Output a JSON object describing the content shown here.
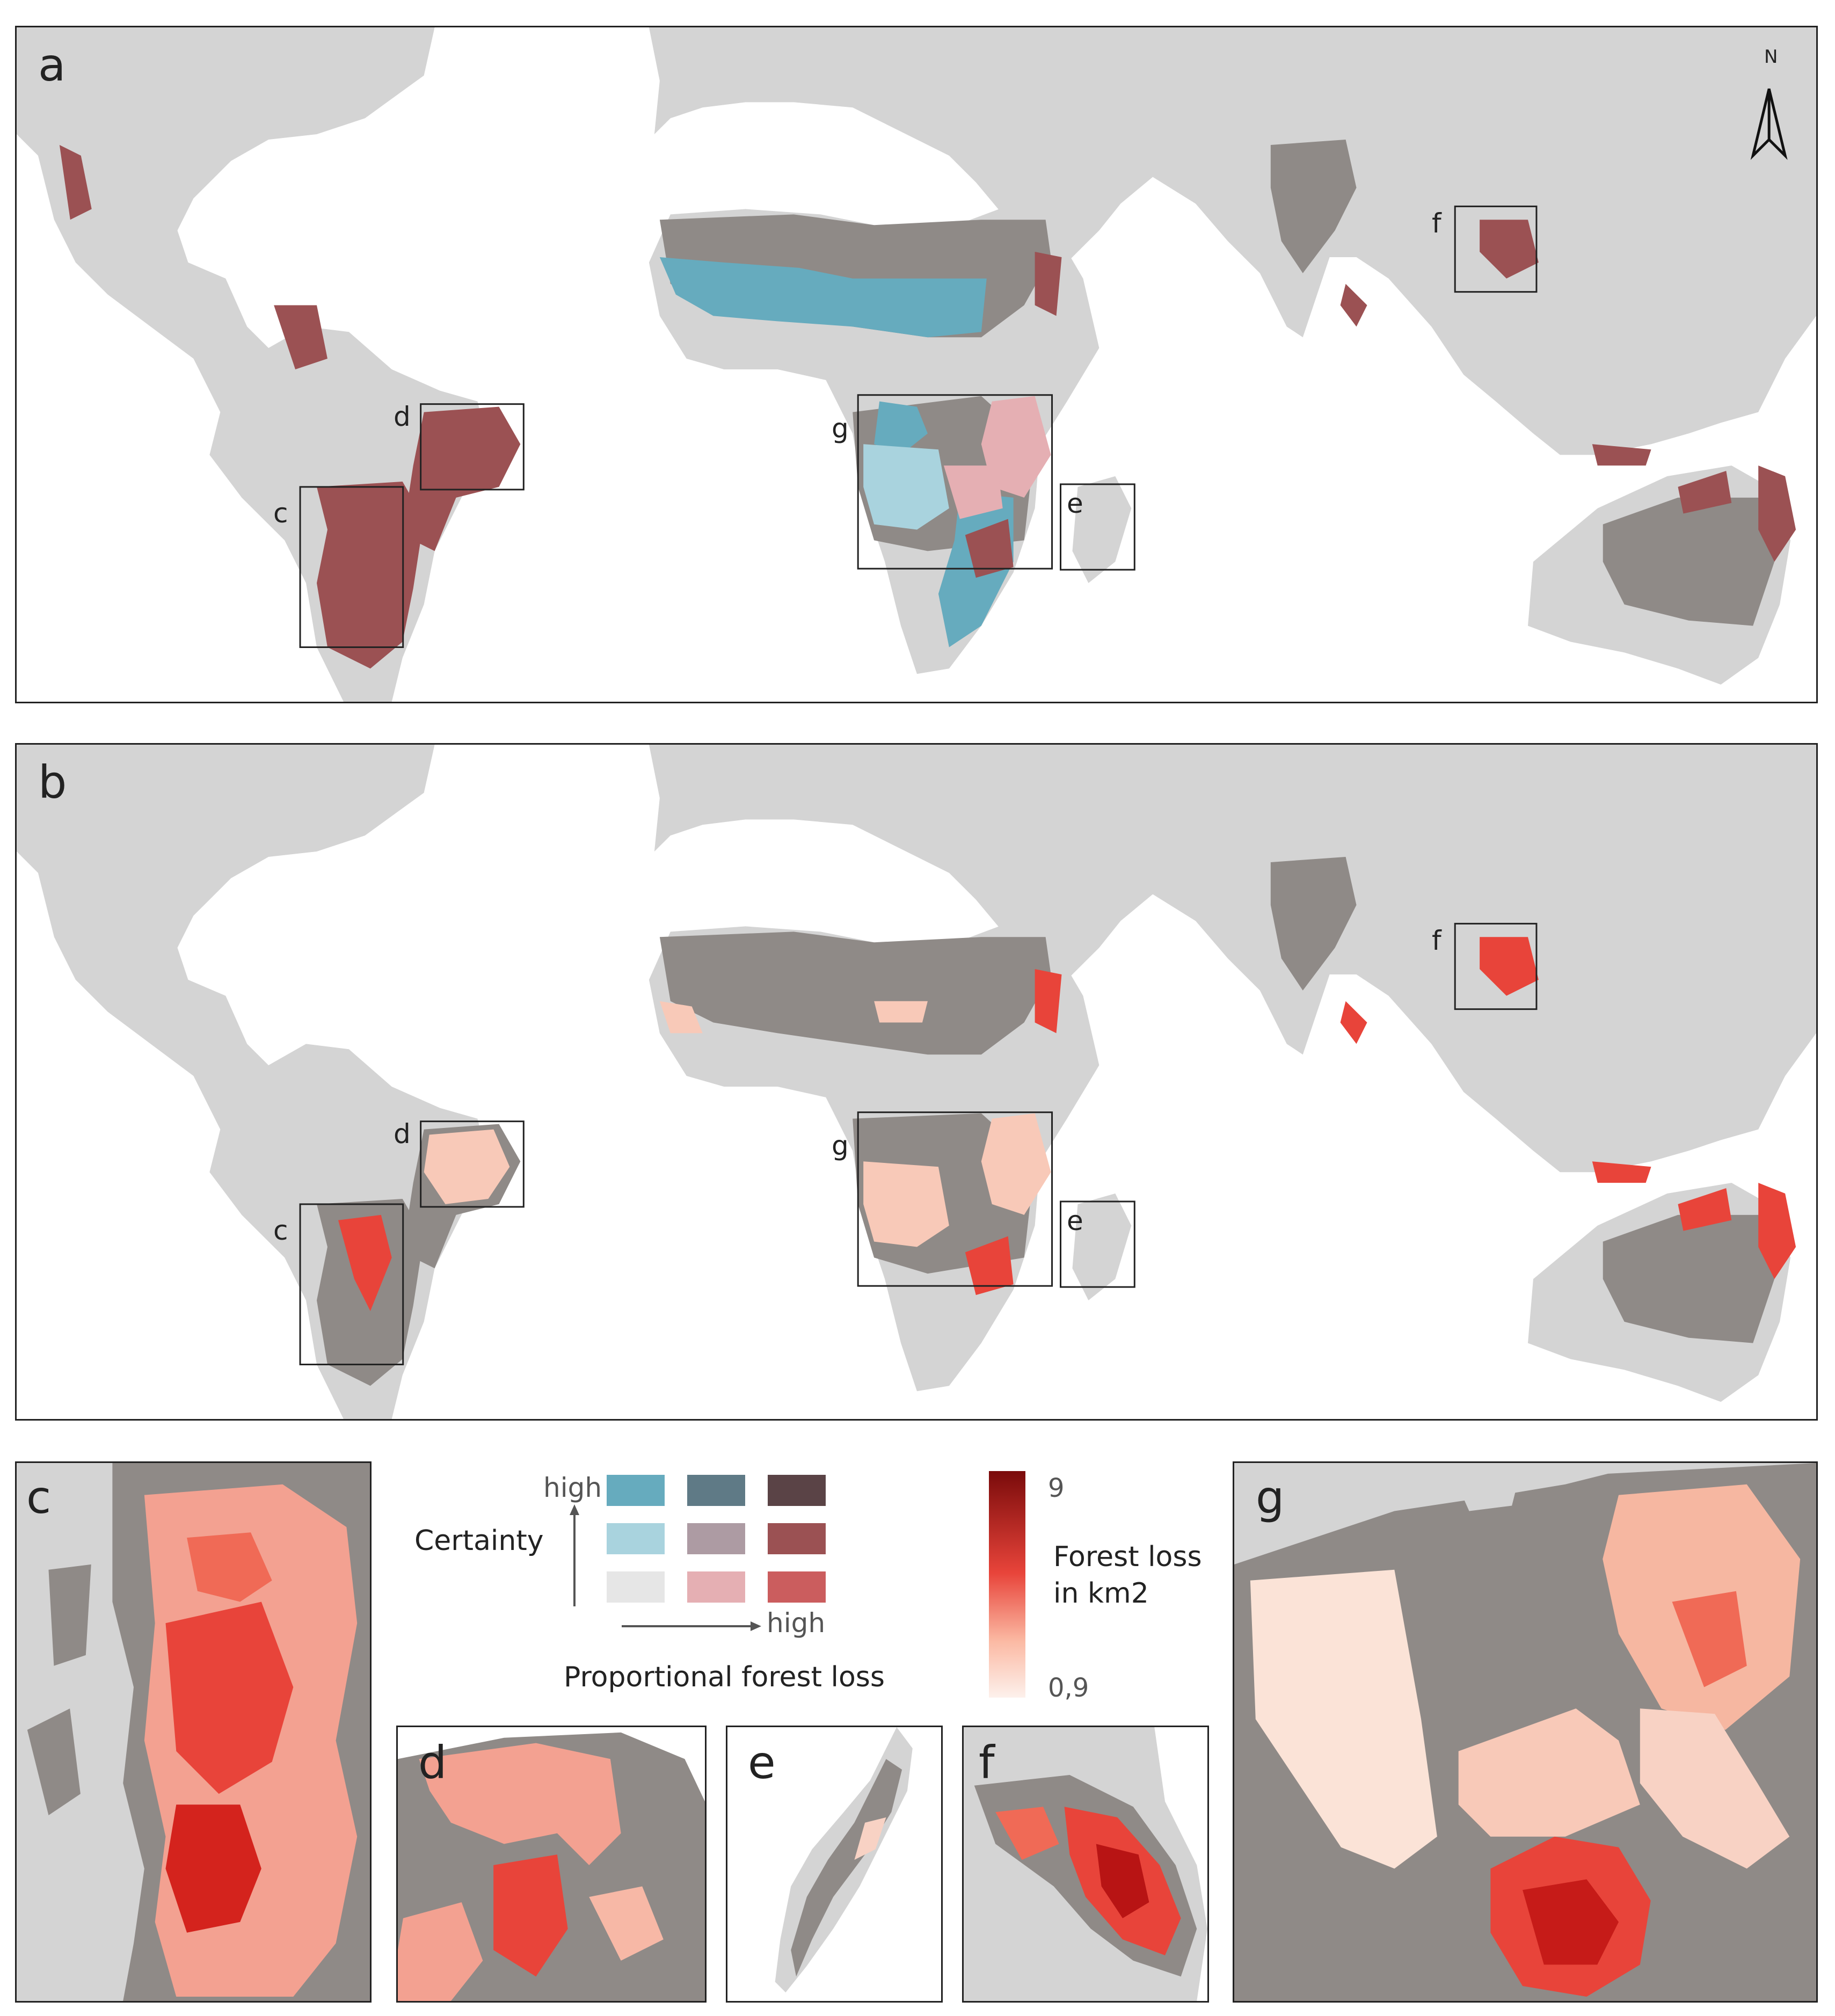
{
  "north_arrow": {
    "label": "N"
  },
  "panels": {
    "a": {
      "label": "a"
    },
    "b": {
      "label": "b"
    },
    "c": {
      "label": "c"
    },
    "d": {
      "label": "d"
    },
    "e": {
      "label": "e"
    },
    "f": {
      "label": "f"
    },
    "g": {
      "label": "g"
    }
  },
  "inset_box_labels": {
    "c": "c",
    "d": "d",
    "e": "e",
    "f": "f",
    "g": "g"
  },
  "bivariate_legend": {
    "y_label": "Certainty",
    "y_high": "high",
    "x_high": "high",
    "x_label": "Proportional forest loss",
    "grid_colors": [
      [
        "#66abbe",
        "#5f7a86",
        "#5a4346"
      ],
      [
        "#a9d3de",
        "#ad9ba3",
        "#9b5153"
      ],
      [
        "#e6e6e6",
        "#e5afb3",
        "#cb5d5e"
      ]
    ]
  },
  "continuous_legend": {
    "title_line1": "Forest loss",
    "title_line2": "in km2",
    "max_label": "9",
    "min_label": "0,9",
    "color_high": "#7a0b0b",
    "color_mid": "#e8443a",
    "color_low": "#fdf1ec"
  },
  "colors": {
    "land": "#d4d4d4",
    "no_data_forest": "#8f8a87",
    "frame": "#222222"
  }
}
